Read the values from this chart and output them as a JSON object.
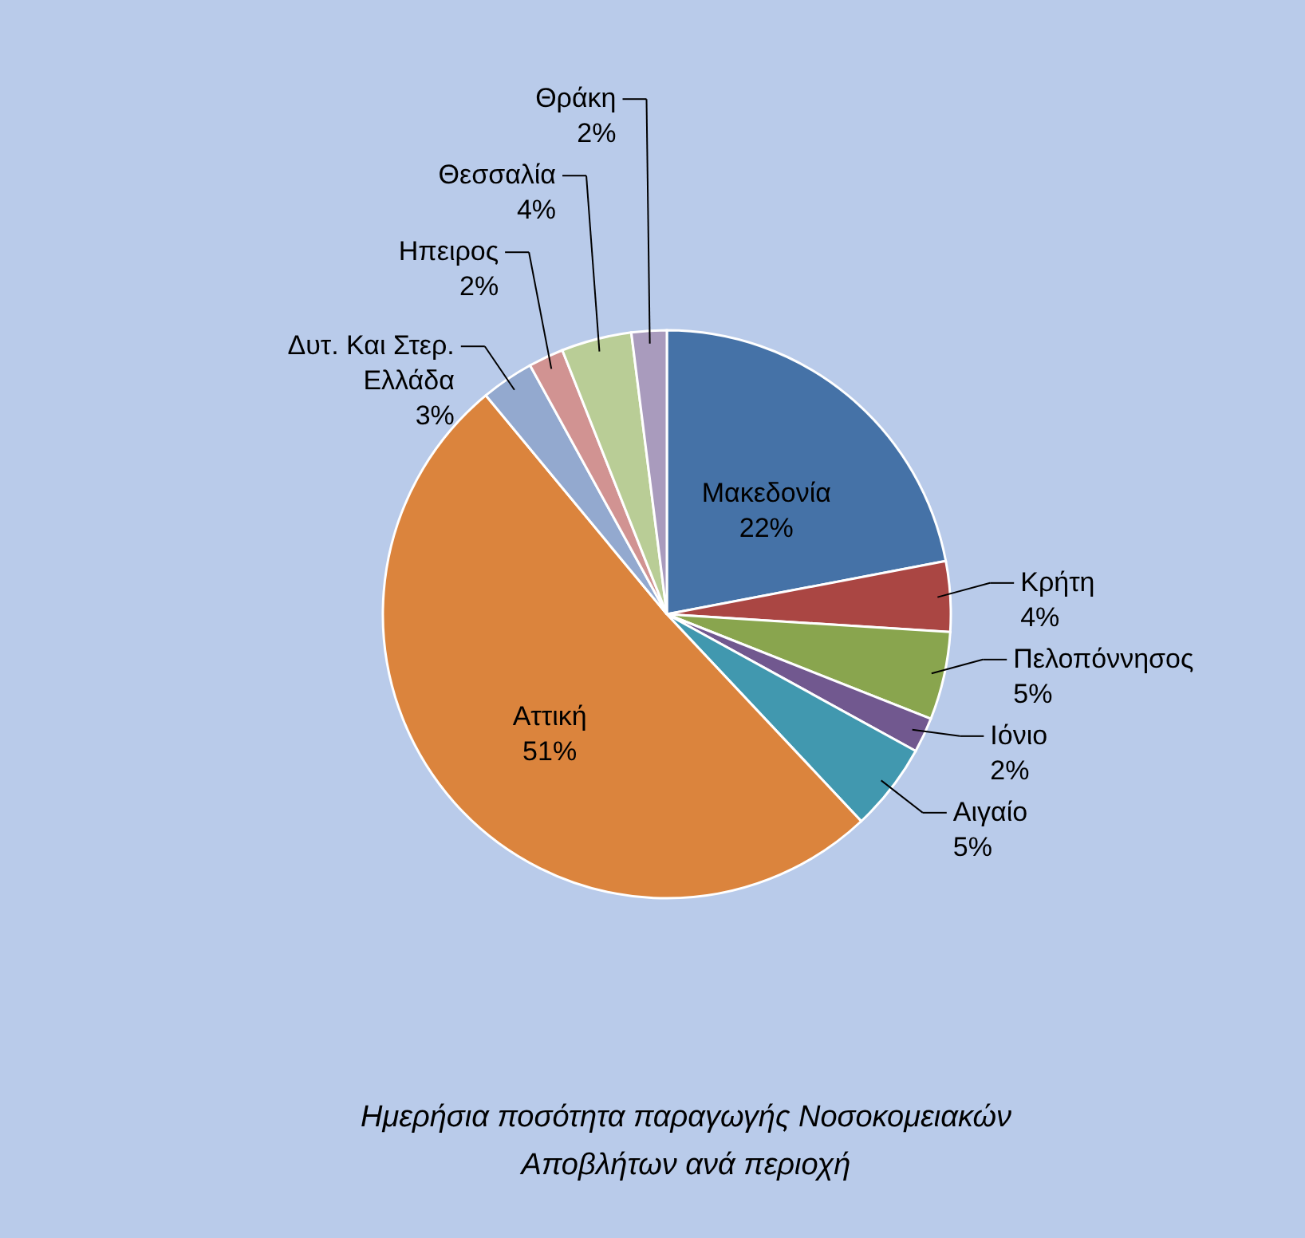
{
  "chart_data": {
    "type": "pie",
    "title": "Ημερήσια ποσότητα παραγωγής Νοσοκομειακών Αποβλήτων ανά περιοχή",
    "categories": [
      "Μακεδονία",
      "Κρήτη",
      "Πελοπόννησος",
      "Ιόνιο",
      "Αιγαίο",
      "Αττική",
      "Δυτ. Και Στερ. Ελλάδα",
      "Ηπειρος",
      "Θεσσαλία",
      "Θράκη"
    ],
    "values": [
      22,
      4,
      5,
      2,
      5,
      51,
      3,
      2,
      4,
      2
    ],
    "value_labels": [
      "22%",
      "4%",
      "5%",
      "2%",
      "5%",
      "51%",
      "3%",
      "2%",
      "4%",
      "2%"
    ],
    "colors": [
      "#4572a7",
      "#aa4643",
      "#89a54e",
      "#71588f",
      "#4198af",
      "#db843d",
      "#93a9cf",
      "#d19392",
      "#b9cd96",
      "#a99bbd"
    ]
  }
}
